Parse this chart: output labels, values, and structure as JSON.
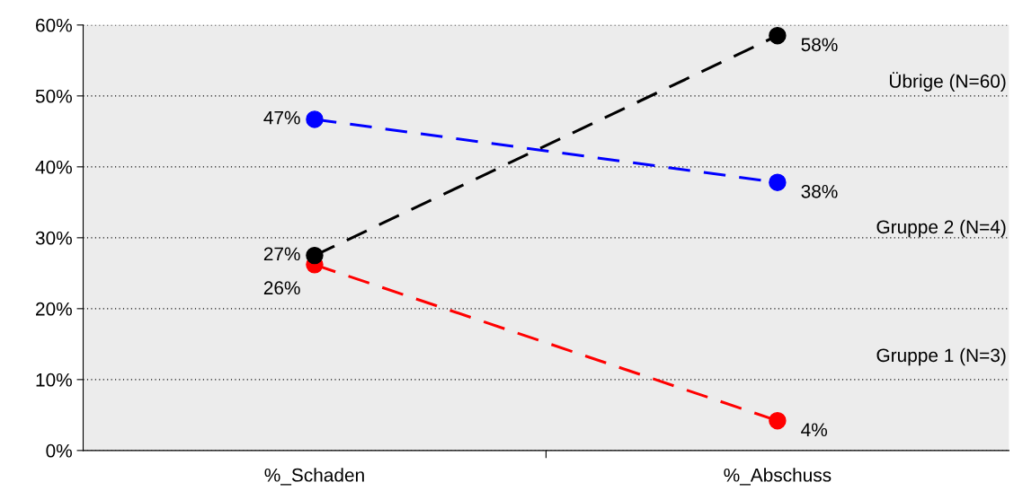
{
  "chart_data": {
    "type": "line",
    "categories": [
      "%_Schaden",
      "%_Abschuss"
    ],
    "series": [
      {
        "name": "Übrige (N=60)",
        "color": "#000000",
        "values": [
          27.5,
          58.5
        ],
        "value_labels": [
          "27%",
          "58%"
        ]
      },
      {
        "name": "Gruppe 2 (N=4)",
        "color": "#0000ff",
        "values": [
          46.7,
          37.8
        ],
        "value_labels": [
          "47%",
          "38%"
        ]
      },
      {
        "name": "Gruppe 1 (N=3)",
        "color": "#ff0000",
        "values": [
          26.2,
          4.2
        ],
        "value_labels": [
          "26%",
          "4%"
        ]
      }
    ],
    "ylim": [
      0,
      60
    ],
    "yticks": [
      {
        "value": 0,
        "label": "0%"
      },
      {
        "value": 10,
        "label": "10%"
      },
      {
        "value": 20,
        "label": "20%"
      },
      {
        "value": 30,
        "label": "30%"
      },
      {
        "value": 40,
        "label": "40%"
      },
      {
        "value": 50,
        "label": "50%"
      },
      {
        "value": 60,
        "label": "60%"
      }
    ],
    "grid": "y",
    "marker": "circle",
    "line_style": "dashed"
  }
}
